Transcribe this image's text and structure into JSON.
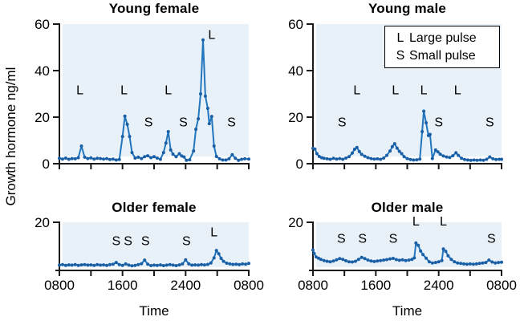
{
  "ylabel": "Growth hormone ng/ml",
  "xlabel": "Time",
  "legend": {
    "items": [
      {
        "symbol": "L",
        "label": "Large pulse"
      },
      {
        "symbol": "S",
        "label": "Small pulse"
      }
    ]
  },
  "colors": {
    "line": "#2176bd",
    "marker": "#1a5fa6",
    "plot_bg": "#e9f1f8",
    "axis": "#1a1a1a",
    "text": "#000000"
  },
  "chart_data": [
    {
      "type": "line",
      "title": "Young female",
      "ylim": [
        0,
        60
      ],
      "yticks": [
        0,
        20,
        40,
        60
      ],
      "x_hours_range": [
        0,
        24
      ],
      "points": [
        [
          0,
          2.3
        ],
        [
          0.4,
          2.0
        ],
        [
          0.8,
          2.4
        ],
        [
          1.2,
          1.9
        ],
        [
          1.6,
          2.2
        ],
        [
          2.0,
          2.1
        ],
        [
          2.4,
          2.6
        ],
        [
          2.8,
          7.6
        ],
        [
          3.2,
          2.8
        ],
        [
          3.6,
          2.2
        ],
        [
          4.0,
          2.5
        ],
        [
          4.4,
          2.0
        ],
        [
          4.8,
          2.3
        ],
        [
          5.2,
          2.2
        ],
        [
          5.6,
          2.0
        ],
        [
          6.0,
          2.2
        ],
        [
          6.4,
          1.8
        ],
        [
          6.8,
          2.0
        ],
        [
          7.2,
          1.6
        ],
        [
          7.6,
          1.8
        ],
        [
          8.0,
          11.7
        ],
        [
          8.3,
          20.4
        ],
        [
          8.6,
          16.9
        ],
        [
          8.9,
          11.7
        ],
        [
          9.2,
          4.8
        ],
        [
          9.6,
          2.4
        ],
        [
          10.0,
          2.8
        ],
        [
          10.4,
          2.2
        ],
        [
          10.8,
          3.0
        ],
        [
          11.2,
          3.4
        ],
        [
          11.6,
          2.6
        ],
        [
          12.0,
          3.0
        ],
        [
          12.4,
          2.4
        ],
        [
          12.8,
          1.9
        ],
        [
          13.2,
          4.8
        ],
        [
          13.5,
          8.9
        ],
        [
          13.8,
          13.8
        ],
        [
          14.1,
          5.9
        ],
        [
          14.4,
          4.1
        ],
        [
          14.8,
          3.0
        ],
        [
          15.2,
          4.3
        ],
        [
          15.5,
          3.3
        ],
        [
          15.8,
          2.9
        ],
        [
          16.1,
          1.5
        ],
        [
          16.5,
          1.7
        ],
        [
          17.0,
          5.5
        ],
        [
          17.3,
          14.8
        ],
        [
          17.6,
          19.3
        ],
        [
          17.9,
          30.0
        ],
        [
          18.2,
          53.2
        ],
        [
          18.5,
          29.0
        ],
        [
          18.8,
          23.8
        ],
        [
          19.0,
          17.2
        ],
        [
          19.3,
          20.3
        ],
        [
          19.6,
          7.6
        ],
        [
          19.9,
          3.1
        ],
        [
          20.3,
          2.1
        ],
        [
          20.7,
          1.6
        ],
        [
          21.1,
          1.6
        ],
        [
          21.5,
          2.1
        ],
        [
          21.9,
          3.9
        ],
        [
          22.3,
          2.3
        ],
        [
          22.7,
          1.5
        ],
        [
          23.1,
          1.9
        ],
        [
          23.5,
          2.1
        ],
        [
          24,
          2.0
        ]
      ],
      "annotations": [
        {
          "t": "L",
          "h": 2.6,
          "v": 31.7
        },
        {
          "t": "L",
          "h": 8.2,
          "v": 31.7
        },
        {
          "t": "S",
          "h": 11.3,
          "v": 17.9
        },
        {
          "t": "L",
          "h": 13.8,
          "v": 31.7
        },
        {
          "t": "S",
          "h": 15.7,
          "v": 17.9
        },
        {
          "t": "L",
          "h": 19.3,
          "v": 55.5
        },
        {
          "t": "S",
          "h": 21.8,
          "v": 17.9
        }
      ]
    },
    {
      "type": "line",
      "title": "Young male",
      "ylim": [
        0,
        60
      ],
      "yticks": [
        0,
        20,
        40,
        60
      ],
      "x_hours_range": [
        0,
        24
      ],
      "points": [
        [
          0,
          6.6
        ],
        [
          0.25,
          6.3
        ],
        [
          0.5,
          4.3
        ],
        [
          0.8,
          3.1
        ],
        [
          1.1,
          2.6
        ],
        [
          1.4,
          2.3
        ],
        [
          1.8,
          2.1
        ],
        [
          2.2,
          1.9
        ],
        [
          2.6,
          2.3
        ],
        [
          3.0,
          2.0
        ],
        [
          3.4,
          2.2
        ],
        [
          3.8,
          1.9
        ],
        [
          4.2,
          2.4
        ],
        [
          4.6,
          3.0
        ],
        [
          5.0,
          4.6
        ],
        [
          5.3,
          6.2
        ],
        [
          5.6,
          7.0
        ],
        [
          5.9,
          5.2
        ],
        [
          6.2,
          4.0
        ],
        [
          6.6,
          3.2
        ],
        [
          7.0,
          2.6
        ],
        [
          7.4,
          2.2
        ],
        [
          7.8,
          2.0
        ],
        [
          8.2,
          2.1
        ],
        [
          8.6,
          1.9
        ],
        [
          9.0,
          2.4
        ],
        [
          9.4,
          3.6
        ],
        [
          9.8,
          5.4
        ],
        [
          10.1,
          7.3
        ],
        [
          10.4,
          8.6
        ],
        [
          10.7,
          6.7
        ],
        [
          11.0,
          5.3
        ],
        [
          11.3,
          4.3
        ],
        [
          11.6,
          3.0
        ],
        [
          12.0,
          2.2
        ],
        [
          12.4,
          1.8
        ],
        [
          12.8,
          1.6
        ],
        [
          13.2,
          1.7
        ],
        [
          13.6,
          2.0
        ],
        [
          13.9,
          13.8
        ],
        [
          14.1,
          22.6
        ],
        [
          14.4,
          17.6
        ],
        [
          14.7,
          12.1
        ],
        [
          14.9,
          12.6
        ],
        [
          15.2,
          2.2
        ],
        [
          15.6,
          5.9
        ],
        [
          15.9,
          5.1
        ],
        [
          16.2,
          4.1
        ],
        [
          16.6,
          3.3
        ],
        [
          17.0,
          2.9
        ],
        [
          17.4,
          2.7
        ],
        [
          17.8,
          3.4
        ],
        [
          18.2,
          4.7
        ],
        [
          18.5,
          3.6
        ],
        [
          18.9,
          2.3
        ],
        [
          19.3,
          1.8
        ],
        [
          19.7,
          1.6
        ],
        [
          20.1,
          1.5
        ],
        [
          20.5,
          1.6
        ],
        [
          20.9,
          1.5
        ],
        [
          21.3,
          1.6
        ],
        [
          21.7,
          1.5
        ],
        [
          22.1,
          1.9
        ],
        [
          22.5,
          2.9
        ],
        [
          22.9,
          2.1
        ],
        [
          23.3,
          1.8
        ],
        [
          23.7,
          1.9
        ],
        [
          24,
          1.9
        ]
      ],
      "annotations": [
        {
          "t": "S",
          "h": 3.7,
          "v": 17.9
        },
        {
          "t": "L",
          "h": 5.6,
          "v": 31.7
        },
        {
          "t": "L",
          "h": 10.5,
          "v": 31.7
        },
        {
          "t": "L",
          "h": 14.1,
          "v": 31.7
        },
        {
          "t": "S",
          "h": 16.0,
          "v": 17.9
        },
        {
          "t": "L",
          "h": 18.4,
          "v": 31.7
        },
        {
          "t": "S",
          "h": 22.5,
          "v": 17.9
        }
      ]
    },
    {
      "type": "line",
      "title": "Older female",
      "ylim": [
        0,
        20
      ],
      "yticks": [
        20
      ],
      "xtick_labels": [
        "0800",
        "",
        "1600",
        "",
        "2400",
        "",
        "0800"
      ],
      "x_hours_range": [
        0,
        24
      ],
      "points": [
        [
          0,
          2.2
        ],
        [
          0.4,
          2.4
        ],
        [
          0.8,
          2.1
        ],
        [
          1.2,
          2.3
        ],
        [
          1.6,
          2.2
        ],
        [
          2.0,
          2.4
        ],
        [
          2.4,
          2.1
        ],
        [
          2.8,
          2.3
        ],
        [
          3.2,
          2.4
        ],
        [
          3.6,
          2.2
        ],
        [
          4.0,
          2.3
        ],
        [
          4.4,
          2.1
        ],
        [
          4.8,
          2.4
        ],
        [
          5.2,
          2.2
        ],
        [
          5.6,
          2.3
        ],
        [
          6.0,
          2.1
        ],
        [
          6.4,
          2.4
        ],
        [
          6.8,
          2.6
        ],
        [
          7.2,
          3.3
        ],
        [
          7.6,
          2.4
        ],
        [
          8.0,
          2.1
        ],
        [
          8.4,
          2.7
        ],
        [
          8.8,
          2.2
        ],
        [
          9.2,
          1.9
        ],
        [
          9.6,
          2.1
        ],
        [
          10.0,
          2.4
        ],
        [
          10.4,
          2.8
        ],
        [
          10.8,
          4.3
        ],
        [
          11.2,
          2.6
        ],
        [
          11.6,
          2.0
        ],
        [
          12.0,
          2.2
        ],
        [
          12.4,
          2.1
        ],
        [
          12.8,
          2.3
        ],
        [
          13.2,
          2.0
        ],
        [
          13.6,
          2.2
        ],
        [
          14.0,
          2.4
        ],
        [
          14.4,
          2.2
        ],
        [
          14.8,
          2.0
        ],
        [
          15.2,
          2.3
        ],
        [
          15.6,
          2.7
        ],
        [
          16.0,
          4.4
        ],
        [
          16.4,
          2.7
        ],
        [
          16.8,
          2.2
        ],
        [
          17.2,
          2.3
        ],
        [
          17.6,
          2.2
        ],
        [
          18.0,
          2.4
        ],
        [
          18.4,
          2.3
        ],
        [
          18.8,
          2.5
        ],
        [
          19.2,
          3.1
        ],
        [
          19.6,
          5.2
        ],
        [
          19.9,
          8.3
        ],
        [
          20.2,
          6.9
        ],
        [
          20.5,
          5.0
        ],
        [
          20.8,
          3.8
        ],
        [
          21.2,
          3.0
        ],
        [
          21.6,
          2.7
        ],
        [
          22.0,
          2.5
        ],
        [
          22.4,
          2.6
        ],
        [
          22.8,
          2.4
        ],
        [
          23.2,
          2.7
        ],
        [
          23.6,
          2.6
        ],
        [
          24,
          2.9
        ]
      ],
      "annotations": [
        {
          "t": "S",
          "h": 7.2,
          "v": 12.3
        },
        {
          "t": "S",
          "h": 8.7,
          "v": 12.3
        },
        {
          "t": "S",
          "h": 10.9,
          "v": 12.3
        },
        {
          "t": "S",
          "h": 16.1,
          "v": 12.3
        },
        {
          "t": "L",
          "h": 19.6,
          "v": 16.0
        }
      ]
    },
    {
      "type": "line",
      "title": "Older male",
      "ylim": [
        0,
        20
      ],
      "yticks": [
        20
      ],
      "xtick_labels": [
        "0800",
        "",
        "1600",
        "",
        "2400",
        "",
        "0800"
      ],
      "x_hours_range": [
        0,
        24
      ],
      "points": [
        [
          0,
          8.5
        ],
        [
          0.15,
          7.1
        ],
        [
          0.4,
          5.6
        ],
        [
          0.7,
          5.1
        ],
        [
          1.0,
          4.6
        ],
        [
          1.4,
          4.1
        ],
        [
          1.8,
          3.8
        ],
        [
          2.2,
          3.6
        ],
        [
          2.6,
          3.9
        ],
        [
          3.0,
          4.4
        ],
        [
          3.4,
          4.9
        ],
        [
          3.8,
          4.6
        ],
        [
          4.2,
          4.0
        ],
        [
          4.6,
          3.6
        ],
        [
          5.0,
          3.5
        ],
        [
          5.4,
          3.8
        ],
        [
          5.8,
          4.6
        ],
        [
          6.2,
          5.4
        ],
        [
          6.6,
          4.9
        ],
        [
          7.0,
          4.3
        ],
        [
          7.4,
          3.9
        ],
        [
          7.8,
          3.7
        ],
        [
          8.2,
          3.9
        ],
        [
          8.6,
          4.1
        ],
        [
          9.0,
          4.3
        ],
        [
          9.4,
          4.5
        ],
        [
          9.8,
          4.8
        ],
        [
          10.2,
          5.0
        ],
        [
          10.6,
          4.5
        ],
        [
          11.0,
          4.2
        ],
        [
          11.4,
          4.4
        ],
        [
          11.8,
          4.1
        ],
        [
          12.2,
          4.3
        ],
        [
          12.6,
          4.6
        ],
        [
          12.9,
          5.2
        ],
        [
          13.1,
          11.4
        ],
        [
          13.4,
          10.4
        ],
        [
          13.7,
          8.1
        ],
        [
          14.0,
          6.6
        ],
        [
          14.4,
          5.1
        ],
        [
          14.8,
          3.6
        ],
        [
          15.2,
          3.1
        ],
        [
          15.6,
          3.3
        ],
        [
          16.0,
          3.6
        ],
        [
          16.4,
          4.1
        ],
        [
          16.6,
          8.9
        ],
        [
          16.9,
          7.9
        ],
        [
          17.2,
          6.1
        ],
        [
          17.6,
          4.6
        ],
        [
          18.0,
          3.6
        ],
        [
          18.4,
          3.1
        ],
        [
          18.8,
          2.9
        ],
        [
          19.2,
          2.7
        ],
        [
          19.6,
          2.6
        ],
        [
          20.0,
          2.7
        ],
        [
          20.4,
          2.6
        ],
        [
          20.8,
          2.7
        ],
        [
          21.2,
          2.9
        ],
        [
          21.6,
          3.1
        ],
        [
          22.0,
          3.3
        ],
        [
          22.4,
          4.3
        ],
        [
          22.8,
          3.5
        ],
        [
          23.2,
          3.1
        ],
        [
          23.6,
          3.3
        ],
        [
          24,
          3.4
        ]
      ],
      "annotations": [
        {
          "t": "S",
          "h": 3.6,
          "v": 13.3
        },
        {
          "t": "S",
          "h": 6.3,
          "v": 13.3
        },
        {
          "t": "S",
          "h": 10.2,
          "v": 13.3
        },
        {
          "t": "L",
          "h": 13.1,
          "v": 20.6
        },
        {
          "t": "L",
          "h": 16.6,
          "v": 20.6
        },
        {
          "t": "S",
          "h": 22.7,
          "v": 13.3
        }
      ]
    }
  ]
}
